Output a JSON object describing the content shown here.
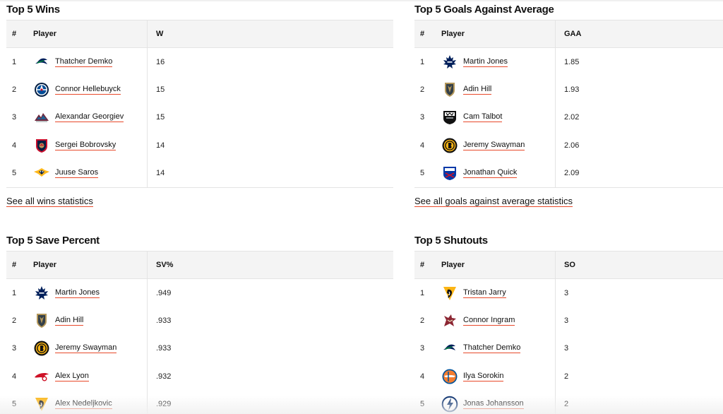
{
  "panels": [
    {
      "title": "Top 5 Wins",
      "headers": {
        "rank": "#",
        "player": "Player",
        "stat": "W"
      },
      "rows": [
        {
          "rank": "1",
          "player": "Thatcher Demko",
          "value": "16",
          "team_logo": "canucks-logo"
        },
        {
          "rank": "2",
          "player": "Connor Hellebuyck",
          "value": "15",
          "team_logo": "jets-logo"
        },
        {
          "rank": "3",
          "player": "Alexandar Georgiev",
          "value": "15",
          "team_logo": "avalanche-logo"
        },
        {
          "rank": "4",
          "player": "Sergei Bobrovsky",
          "value": "14",
          "team_logo": "panthers-logo"
        },
        {
          "rank": "5",
          "player": "Juuse Saros",
          "value": "14",
          "team_logo": "predators-logo"
        }
      ],
      "see_all": "See all wins statistics"
    },
    {
      "title": "Top 5 Goals Against Average",
      "headers": {
        "rank": "#",
        "player": "Player",
        "stat": "GAA"
      },
      "rows": [
        {
          "rank": "1",
          "player": "Martin Jones",
          "value": "1.85",
          "team_logo": "maple-leafs-logo"
        },
        {
          "rank": "2",
          "player": "Adin Hill",
          "value": "1.93",
          "team_logo": "golden-knights-logo"
        },
        {
          "rank": "3",
          "player": "Cam Talbot",
          "value": "2.02",
          "team_logo": "kings-logo"
        },
        {
          "rank": "4",
          "player": "Jeremy Swayman",
          "value": "2.06",
          "team_logo": "bruins-logo"
        },
        {
          "rank": "5",
          "player": "Jonathan Quick",
          "value": "2.09",
          "team_logo": "rangers-logo"
        }
      ],
      "see_all": "See all goals against average statistics"
    },
    {
      "title": "Top 5 Save Percent",
      "headers": {
        "rank": "#",
        "player": "Player",
        "stat": "SV%"
      },
      "rows": [
        {
          "rank": "1",
          "player": "Martin Jones",
          "value": ".949",
          "team_logo": "maple-leafs-logo"
        },
        {
          "rank": "2",
          "player": "Adin Hill",
          "value": ".933",
          "team_logo": "golden-knights-logo"
        },
        {
          "rank": "3",
          "player": "Jeremy Swayman",
          "value": ".933",
          "team_logo": "bruins-logo"
        },
        {
          "rank": "4",
          "player": "Alex Lyon",
          "value": ".932",
          "team_logo": "red-wings-logo"
        },
        {
          "rank": "5",
          "player": "Alex Nedeljkovic",
          "value": ".929",
          "team_logo": "penguins-logo"
        }
      ]
    },
    {
      "title": "Top 5 Shutouts",
      "headers": {
        "rank": "#",
        "player": "Player",
        "stat": "SO"
      },
      "rows": [
        {
          "rank": "1",
          "player": "Tristan Jarry",
          "value": "3",
          "team_logo": "penguins-logo"
        },
        {
          "rank": "2",
          "player": "Connor Ingram",
          "value": "3",
          "team_logo": "coyotes-logo"
        },
        {
          "rank": "3",
          "player": "Thatcher Demko",
          "value": "3",
          "team_logo": "canucks-logo"
        },
        {
          "rank": "4",
          "player": "Ilya Sorokin",
          "value": "2",
          "team_logo": "islanders-logo"
        },
        {
          "rank": "5",
          "player": "Jonas Johansson",
          "value": "2",
          "team_logo": "lightning-logo"
        }
      ]
    }
  ],
  "colors": {
    "link_underline": "#e8492a",
    "header_bg": "#f4f4f4",
    "border": "#e4e4e4"
  }
}
